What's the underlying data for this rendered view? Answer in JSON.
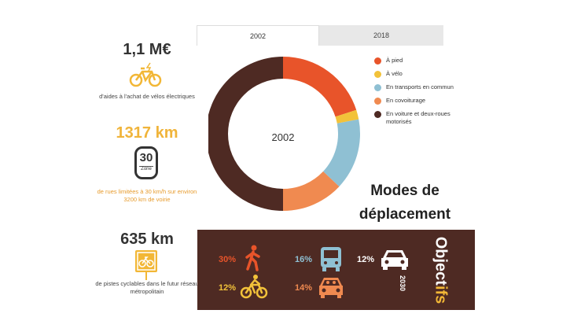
{
  "left": {
    "stat1": {
      "value": "1,1 M€",
      "text": "d'aides à l'achat de vélos électriques"
    },
    "stat2": {
      "value": "1317 km",
      "zone_number": "30",
      "zone_label": "Zone",
      "text": "de rues limitées à 30 km/h sur environ 3200 km de voirie"
    },
    "stat3": {
      "value": "635 km",
      "text": "de pistes cyclables dans le futur réseau métropolitain"
    }
  },
  "tabs": [
    {
      "label": "2002"
    },
    {
      "label": "2018"
    }
  ],
  "donut_center": "2002",
  "legend": [
    {
      "label": "À pied",
      "color": "#e8542a"
    },
    {
      "label": "À vélo",
      "color": "#f2c23a"
    },
    {
      "label": "En transports en commun",
      "color": "#8fc0d3"
    },
    {
      "label": "En covoiturage",
      "color": "#f08a50"
    },
    {
      "label": "En voiture et deux-roues motorisés",
      "color": "#4e2a23"
    }
  ],
  "chart_data": {
    "type": "pie",
    "categories": [
      "À pied",
      "À vélo",
      "En transports en commun",
      "En covoiturage",
      "En voiture et deux-roues motorisés"
    ],
    "values": [
      20,
      2,
      15,
      13,
      50
    ],
    "colors": [
      "#e8542a",
      "#f2c23a",
      "#8fc0d3",
      "#f08a50",
      "#4e2a23"
    ]
  },
  "modes_title": "Modes de déplacement",
  "objectives": {
    "title_a": "Object",
    "title_b": "ifs",
    "year": "2030",
    "items": [
      {
        "pct": "30%",
        "icon": "walking-person-icon",
        "color": "#e8542a"
      },
      {
        "pct": "16%",
        "icon": "bus-icon",
        "color": "#8fc0d3"
      },
      {
        "pct": "12%",
        "icon": "car-icon",
        "color": "#ffffff"
      },
      {
        "pct": "12%",
        "icon": "cyclist-icon",
        "color": "#f2c23a"
      },
      {
        "pct": "14%",
        "icon": "carpool-icon",
        "color": "#f08a50"
      }
    ]
  }
}
